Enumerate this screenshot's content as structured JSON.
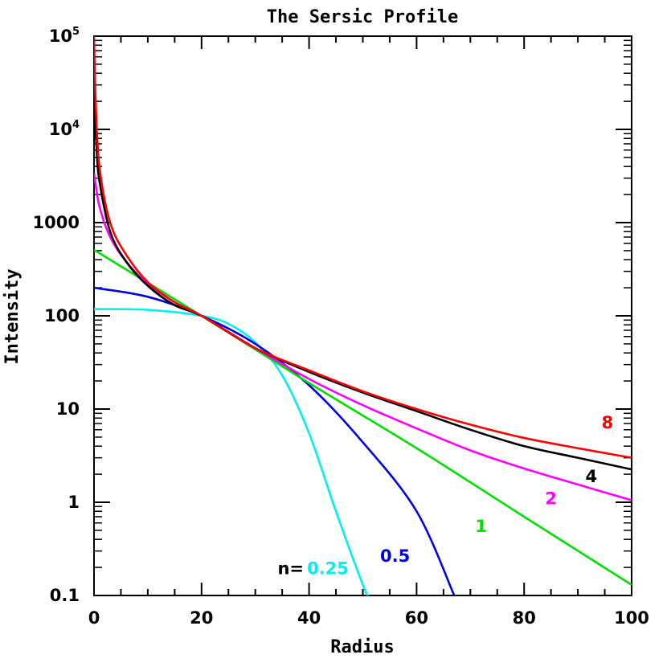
{
  "chart_data": {
    "type": "line",
    "title": "The Sersic Profile",
    "xlabel": "Radius",
    "ylabel": "Intensity",
    "xlim": [
      0,
      100
    ],
    "ylim": [
      0.1,
      100000
    ],
    "yscale": "log",
    "grid": false,
    "x_ticks": [
      "0",
      "20",
      "40",
      "60",
      "80",
      "100"
    ],
    "y_ticks": [
      {
        "base": "0.1",
        "sup": ""
      },
      {
        "base": "1",
        "sup": ""
      },
      {
        "base": "10",
        "sup": ""
      },
      {
        "base": "100",
        "sup": ""
      },
      {
        "base": "1000",
        "sup": ""
      },
      {
        "base": "10",
        "sup": "4"
      },
      {
        "base": "10",
        "sup": "5"
      }
    ],
    "n_prefix": "n=",
    "series": [
      {
        "name": "0.25",
        "color": "#00f0f0",
        "x": [
          0,
          10,
          20,
          25,
          30,
          35,
          40,
          45,
          50,
          51
        ],
        "y": [
          118,
          116,
          100,
          82,
          52,
          23,
          5.5,
          0.8,
          0.13,
          0.1
        ]
      },
      {
        "name": "0.5",
        "color": "#0000e0",
        "x": [
          0,
          10,
          20,
          30,
          40,
          50,
          60,
          67
        ],
        "y": [
          200,
          160,
          100,
          50,
          18,
          4.4,
          0.8,
          0.1
        ]
      },
      {
        "name": "1",
        "color": "#00e000",
        "x": [
          0,
          20,
          40,
          60,
          80,
          100
        ],
        "y": [
          510,
          100,
          19,
          3.8,
          0.7,
          0.13
        ]
      },
      {
        "name": "2",
        "color": "#ff00ff",
        "x": [
          0,
          1,
          3,
          6,
          10,
          15,
          20,
          30,
          40,
          50,
          60,
          70,
          80,
          90,
          100
        ],
        "y": [
          3400,
          1500,
          700,
          380,
          220,
          140,
          100,
          45,
          21,
          11,
          6.2,
          3.6,
          2.3,
          1.55,
          1.05
        ]
      },
      {
        "name": "4",
        "color": "#000000",
        "x": [
          0,
          0.5,
          1,
          3,
          6,
          10,
          15,
          20,
          30,
          40,
          50,
          60,
          70,
          80,
          90,
          100
        ],
        "y": [
          24000,
          6000,
          2800,
          800,
          380,
          210,
          130,
          100,
          45,
          25,
          15,
          9.5,
          6,
          4,
          3,
          2.25
        ]
      },
      {
        "name": "8",
        "color": "#ff0000",
        "x": [
          0,
          0.3,
          1,
          3,
          6,
          10,
          15,
          20,
          30,
          40,
          50,
          60,
          70,
          80,
          90,
          100
        ],
        "y": [
          100000,
          20000,
          4000,
          1000,
          450,
          230,
          140,
          100,
          45,
          26,
          15.5,
          10,
          6.8,
          4.9,
          3.8,
          3.0
        ]
      }
    ],
    "labels": [
      {
        "series": "8",
        "text": "8",
        "x": 95.5,
        "y": 6.2
      },
      {
        "series": "4",
        "text": "4",
        "x": 92.5,
        "y": 1.65
      },
      {
        "series": "2",
        "text": "2",
        "x": 85,
        "y": 0.95
      },
      {
        "series": "1",
        "text": "1",
        "x": 72,
        "y": 0.48
      },
      {
        "series": "0.5",
        "text": "0.5",
        "x": 56,
        "y": 0.23
      },
      {
        "series": "0.25",
        "text": "0.25",
        "x": 43.5,
        "y": 0.17
      }
    ]
  }
}
